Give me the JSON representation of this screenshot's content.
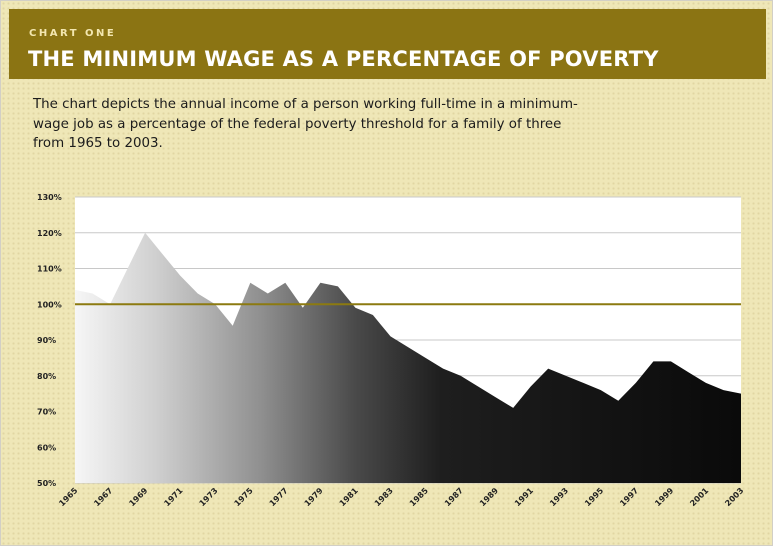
{
  "header": {
    "kicker": "CHART ONE",
    "title": "THE MINIMUM WAGE AS A PERCENTAGE OF POVERTY"
  },
  "description": "The chart depicts the annual income of a person working full-time in a minimum-\nwage job as a percentage of the federal poverty threshold for a family of three\nfrom 1965 to 2003.",
  "colors": {
    "header_bg": "#8b7413",
    "page_bg": "#efe7b7",
    "reference_line": "#8c7a10",
    "area_light": "#f4f4f4",
    "area_dark": "#0d0d0d"
  },
  "chart_data": {
    "type": "area",
    "title": "THE MINIMUM WAGE AS A PERCENTAGE OF POVERTY",
    "xlabel": "",
    "ylabel": "",
    "ylim": [
      50,
      130
    ],
    "yticks": [
      "50%",
      "60%",
      "70%",
      "80%",
      "90%",
      "100%",
      "110%",
      "120%",
      "130%"
    ],
    "xticks": [
      "1965",
      "1967",
      "1969",
      "1971",
      "1973",
      "1975",
      "1977",
      "1979",
      "1981",
      "1983",
      "1985",
      "1987",
      "1989",
      "1991",
      "1993",
      "1995",
      "1997",
      "1999",
      "2001",
      "2003"
    ],
    "grid": true,
    "reference_line": 100,
    "x": [
      1965,
      1966,
      1967,
      1968,
      1969,
      1970,
      1971,
      1972,
      1973,
      1974,
      1975,
      1976,
      1977,
      1978,
      1979,
      1980,
      1981,
      1982,
      1983,
      1984,
      1985,
      1986,
      1987,
      1988,
      1989,
      1990,
      1991,
      1992,
      1993,
      1994,
      1995,
      1996,
      1997,
      1998,
      1999,
      2000,
      2001,
      2002,
      2003
    ],
    "values": [
      104,
      103,
      100,
      110,
      120,
      114,
      108,
      103,
      100,
      94,
      106,
      103,
      106,
      99,
      106,
      105,
      99,
      97,
      91,
      88,
      85,
      82,
      80,
      77,
      74,
      71,
      77,
      82,
      80,
      78,
      76,
      73,
      78,
      84,
      84,
      81,
      78,
      76,
      75
    ]
  }
}
